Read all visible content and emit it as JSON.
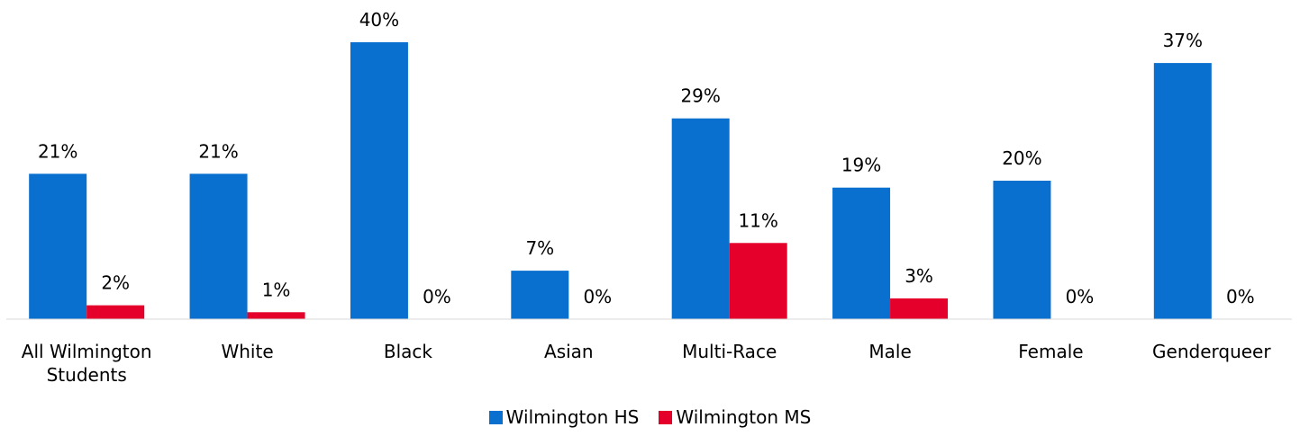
{
  "chart_data": {
    "type": "bar",
    "categories": [
      "All Wilmington Students",
      "White",
      "Black",
      "Asian",
      "Multi-Race",
      "Male",
      "Female",
      "Genderqueer"
    ],
    "series": [
      {
        "name": "Wilmington HS",
        "color": "#0a70cf",
        "values": [
          21,
          21,
          40,
          7,
          29,
          19,
          20,
          37
        ],
        "value_labels": [
          "21%",
          "21%",
          "40%",
          "7%",
          "29%",
          "19%",
          "20%",
          "37%"
        ]
      },
      {
        "name": "Wilmington MS",
        "color": "#e4002b",
        "values": [
          2,
          1,
          0,
          0,
          11,
          3,
          0,
          0
        ],
        "value_labels": [
          "2%",
          "1%",
          "0%",
          "0%",
          "11%",
          "3%",
          "0%",
          "0%"
        ]
      }
    ],
    "ylim": [
      0,
      40
    ],
    "legend": "bottom"
  }
}
